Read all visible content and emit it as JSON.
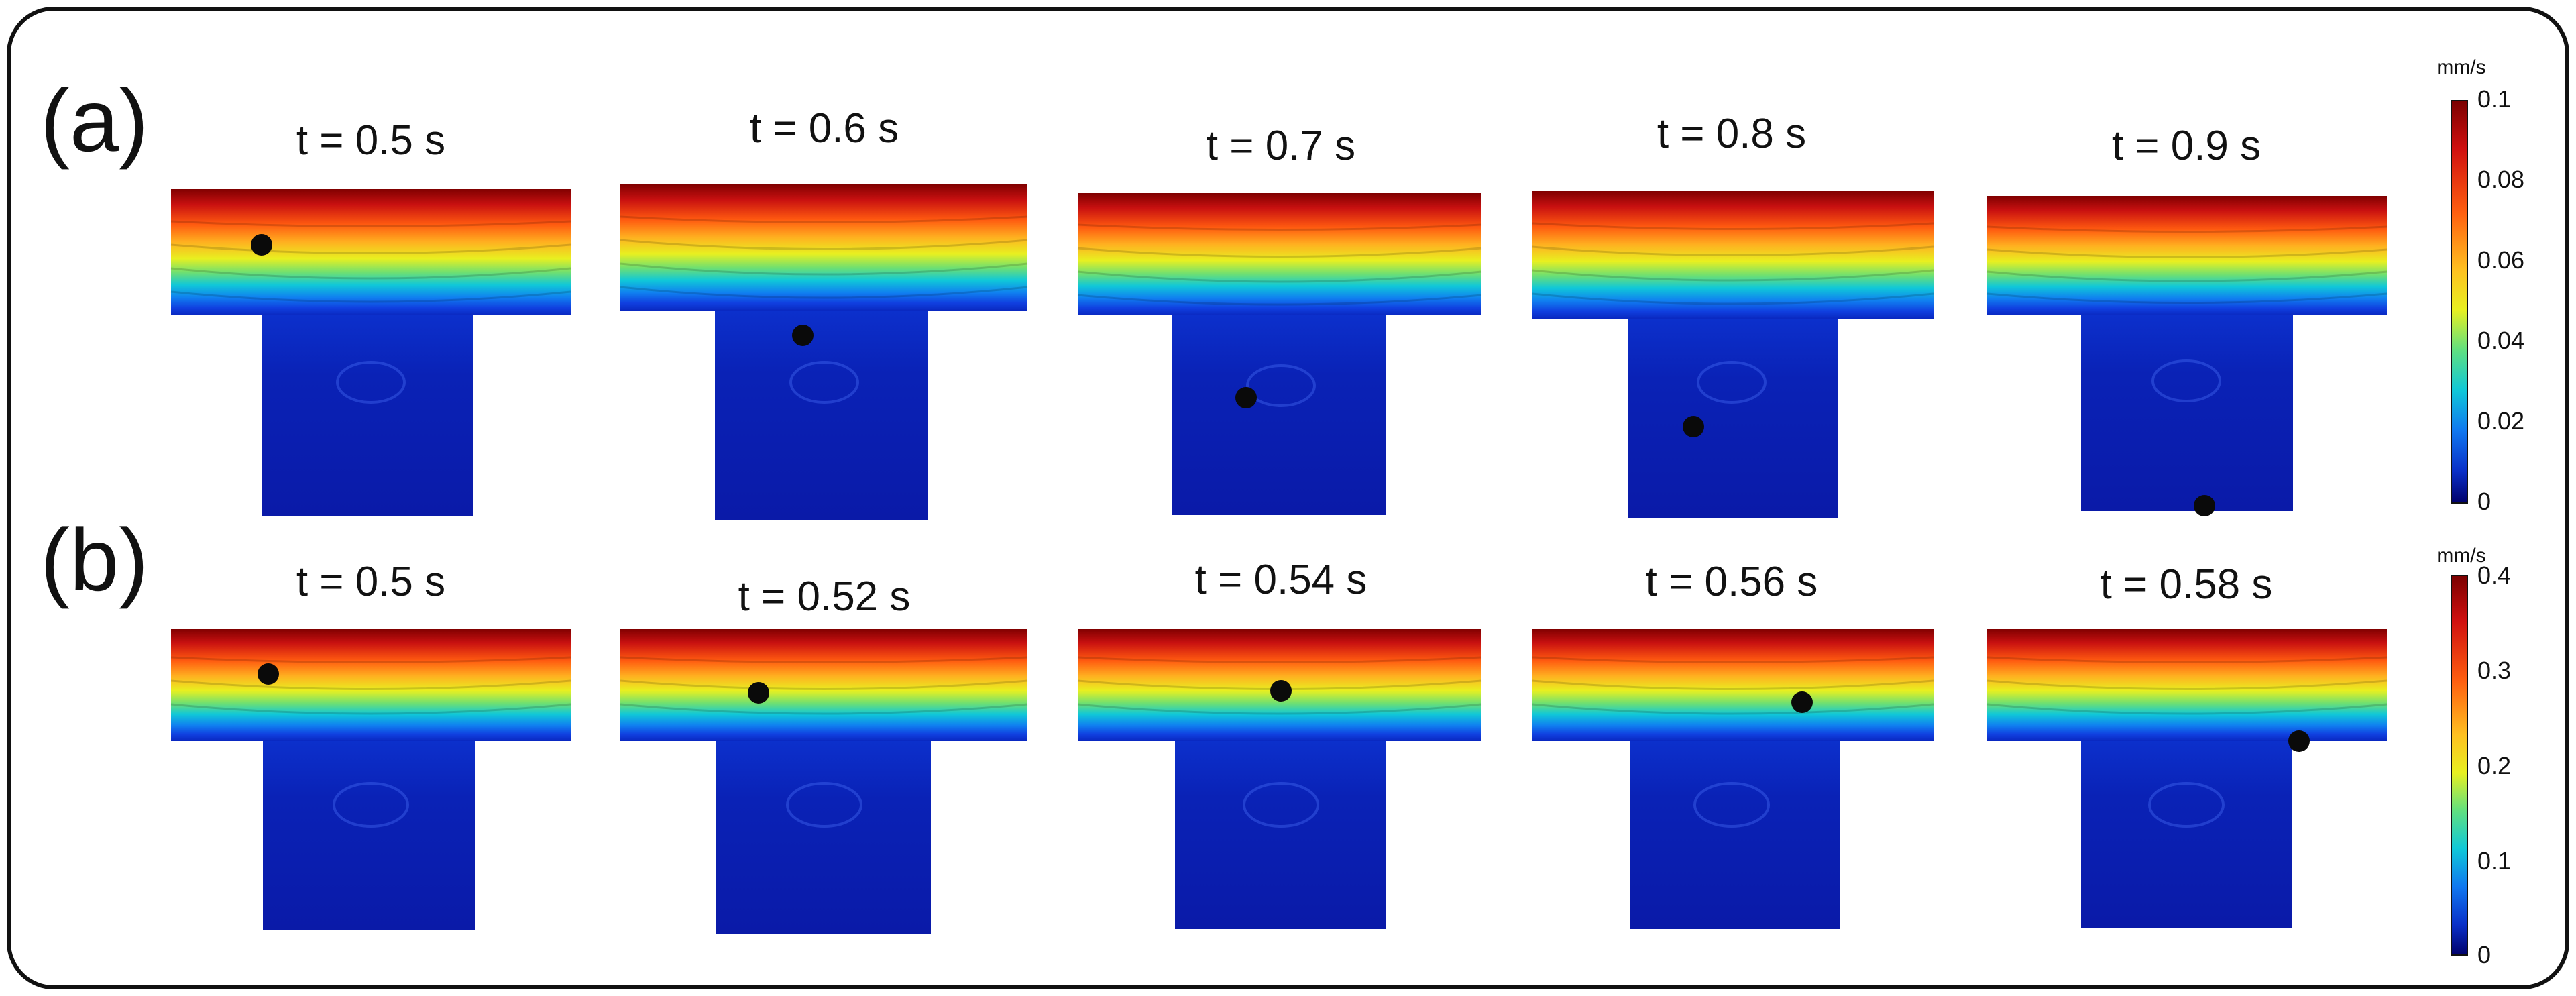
{
  "rows": [
    {
      "label": "(a)",
      "colorbar": {
        "unit": "mm/s",
        "ticks": [
          "0.1",
          "0.08",
          "0.06",
          "0.04",
          "0.02",
          "0"
        ]
      },
      "panels": [
        {
          "time": "t = 0.5 s"
        },
        {
          "time": "t = 0.6 s"
        },
        {
          "time": "t = 0.7 s"
        },
        {
          "time": "t = 0.8 s"
        },
        {
          "time": "t = 0.9 s"
        }
      ]
    },
    {
      "label": "(b)",
      "colorbar": {
        "unit": "mm/s",
        "ticks": [
          "0.4",
          "0.3",
          "0.2",
          "0.1",
          "0"
        ]
      },
      "panels": [
        {
          "time": "t = 0.5 s"
        },
        {
          "time": "t = 0.52 s"
        },
        {
          "time": "t = 0.54 s"
        },
        {
          "time": "t = 0.56 s"
        },
        {
          "time": "t = 0.58 s"
        }
      ]
    }
  ],
  "colors": {
    "high": "#7a0000",
    "mid": "#e8f020",
    "low": "#0a1fb4",
    "particle": "#0a0a0a"
  }
}
